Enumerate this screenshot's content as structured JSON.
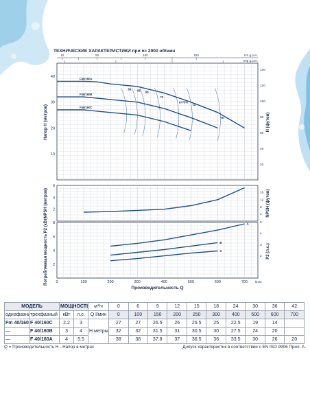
{
  "title": "ТЕХНИЧЕСКИЕ ХАРАКТЕРИСТИКИ при n≈ 2900 об/мин",
  "colors": {
    "curve": "#1f4f91",
    "grid": "#c5cad3",
    "frame": "#2b3550",
    "splash": "#bfe1f3"
  },
  "head_chart": {
    "top_axis_labels": [
      "10",
      "50",
      "100",
      "150",
      "US g.p.m.",
      "Imp g.p.m."
    ],
    "top_axis_unit": "US g.p.m.",
    "top_axis_unit2": "Imp g.p.m.",
    "top_ticks_us": [
      {
        "x": 20,
        "t": "10"
      },
      {
        "x": 80,
        "t": ""
      },
      {
        "x": 150,
        "t": "50"
      },
      {
        "x": 240,
        "t": ""
      },
      {
        "x": 330,
        "t": "100"
      },
      {
        "x": 430,
        "t": ""
      },
      {
        "x": 520,
        "t": "150"
      }
    ],
    "top_ticks_imp": [
      {
        "x": 30,
        "t": "10"
      },
      {
        "x": 220,
        "t": "50"
      },
      {
        "x": 430,
        "t": "100"
      },
      {
        "x": 620,
        "t": "150"
      }
    ],
    "ylabel_left": "Напор  H  (метров)",
    "ylabel_right": "H  (футов)",
    "ylim": [
      0,
      45
    ],
    "yticks_left": [
      "10",
      "20",
      "30",
      "40"
    ],
    "yticks_right": [
      "20",
      "40",
      "60",
      "80",
      "100",
      "120",
      "140"
    ],
    "series": [
      {
        "name": "F40/160A",
        "x": [
          0,
          100,
          150,
          200,
          250,
          300,
          400,
          500,
          600,
          700
        ],
        "y": [
          38,
          38,
          37.8,
          37,
          36.5,
          36,
          33.5,
          30,
          26,
          20
        ]
      },
      {
        "name": "F40/160B",
        "x": [
          0,
          100,
          150,
          200,
          250,
          300,
          400,
          500,
          600
        ],
        "y": [
          32,
          32,
          31.5,
          31,
          30.5,
          30,
          27.5,
          24,
          20
        ]
      },
      {
        "name": "F40/160C",
        "x": [
          0,
          100,
          150,
          200,
          250,
          300,
          400,
          500
        ],
        "y": [
          27,
          27,
          26.5,
          26,
          25.5,
          25,
          22.5,
          19
        ]
      }
    ],
    "efficiency_labels": [
      {
        "t": "60",
        "x": 265,
        "y": 34.5
      },
      {
        "t": "65",
        "x": 300,
        "y": 34
      },
      {
        "t": "68",
        "x": 330,
        "y": 33.5
      },
      {
        "t": "70",
        "x": 385,
        "y": 31.5
      },
      {
        "t": "η=70%",
        "x": 455,
        "y": 29.5
      },
      {
        "t": "74",
        "x": 505,
        "y": 28.5
      },
      {
        "t": "75",
        "x": 610,
        "y": 23.5
      }
    ]
  },
  "npsh_chart": {
    "ylabel_left": "NPSH  (метров)",
    "ylabel_right": "NPSH  (футов)",
    "ylim": [
      0,
      6
    ],
    "yticks_left": [
      "2",
      "4",
      "6"
    ],
    "yticks_right": [
      "4",
      "8",
      "12",
      "16"
    ],
    "series": [
      {
        "name": "NPSH",
        "x": [
          100,
          200,
          300,
          400,
          500,
          600,
          700
        ],
        "y": [
          1.5,
          1.6,
          1.8,
          2.0,
          2.6,
          3.6,
          5.6
        ]
      }
    ]
  },
  "power_chart": {
    "ylabel_left": "Потребляемая мощность  P2  (кВт)",
    "ylabel_right": "P2  (л.с.)",
    "ylim": [
      0,
      8
    ],
    "yticks_left": [
      "2",
      "4",
      "6",
      "8"
    ],
    "yticks_right": [
      "2",
      "3",
      "4",
      "5"
    ],
    "xticks": [
      "0",
      "100",
      "200",
      "300",
      "400",
      "500",
      "600",
      "700"
    ],
    "x_unit": "l/min",
    "xlabel": "Производительность  Q",
    "series": [
      {
        "name": "A",
        "x": [
          0,
          100,
          200,
          300,
          400,
          500,
          600,
          700
        ],
        "y": [
          3.8,
          4.2,
          4.6,
          5.0,
          5.5,
          6.2,
          6.9,
          7.8
        ]
      },
      {
        "name": "B",
        "x": [
          0,
          100,
          200,
          300,
          400,
          500,
          600
        ],
        "y": [
          2.6,
          2.9,
          3.3,
          3.7,
          4.1,
          4.6,
          5.1
        ]
      },
      {
        "name": "C",
        "x": [
          0,
          100,
          200,
          300,
          400,
          500,
          600
        ],
        "y": [
          1.8,
          2.1,
          2.5,
          2.8,
          3.2,
          3.6,
          3.9
        ]
      }
    ]
  },
  "chart_data": [
    {
      "type": "line",
      "title": "ТЕХНИЧЕСКИЕ ХАРАКТЕРИСТИКИ при n≈ 2900 об/мин",
      "xlabel": "Производительность  Q",
      "ylabel": "Напор  H  (метров)",
      "ylim": [
        0,
        45
      ],
      "series": [
        {
          "name": "F40/160A",
          "x": [
            0,
            100,
            150,
            200,
            250,
            300,
            400,
            500,
            600,
            700
          ],
          "y": [
            38,
            38,
            37.8,
            37,
            36.5,
            36,
            33.5,
            30,
            26,
            20
          ]
        },
        {
          "name": "F40/160B",
          "x": [
            0,
            100,
            150,
            200,
            250,
            300,
            400,
            500,
            600
          ],
          "y": [
            32,
            32,
            31.5,
            31,
            30.5,
            30,
            27.5,
            24,
            20
          ]
        },
        {
          "name": "F40/160C",
          "x": [
            0,
            100,
            150,
            200,
            250,
            300,
            400,
            500
          ],
          "y": [
            27,
            27,
            26.5,
            26,
            25.5,
            25,
            22.5,
            19
          ]
        }
      ]
    },
    {
      "type": "line",
      "ylabel": "NPSH  (метров)",
      "ylim": [
        0,
        6
      ],
      "series": [
        {
          "name": "NPSH",
          "x": [
            100,
            200,
            300,
            400,
            500,
            600,
            700
          ],
          "y": [
            1.5,
            1.6,
            1.8,
            2.0,
            2.6,
            3.6,
            5.6
          ]
        }
      ]
    },
    {
      "type": "line",
      "xlabel": "Производительность  Q",
      "ylabel": "Потребляемая мощность  P2  (кВт)",
      "ylim": [
        0,
        8
      ],
      "series": [
        {
          "name": "A",
          "x": [
            0,
            100,
            200,
            300,
            400,
            500,
            600,
            700
          ],
          "y": [
            3.8,
            4.2,
            4.6,
            5.0,
            5.5,
            6.2,
            6.9,
            7.8
          ]
        },
        {
          "name": "B",
          "x": [
            0,
            100,
            200,
            300,
            400,
            500,
            600
          ],
          "y": [
            2.6,
            2.9,
            3.3,
            3.7,
            4.1,
            4.6,
            5.1
          ]
        },
        {
          "name": "C",
          "x": [
            0,
            100,
            200,
            300,
            400,
            500,
            600
          ],
          "y": [
            1.8,
            2.1,
            2.5,
            2.8,
            3.2,
            3.6,
            3.9
          ]
        }
      ]
    }
  ],
  "table": {
    "model_header": "МОДЕЛЬ",
    "power_header": "МОЩНОСТЬ",
    "m3h_unit": "м³/ч",
    "q_label": "Q",
    "lmin_unit": "l/мин",
    "sub_headers": [
      "однофазный",
      "трехфазный",
      "кВт",
      "л.с."
    ],
    "q_m3h": [
      "0",
      "6",
      "9",
      "12",
      "15",
      "18",
      "24",
      "30",
      "36",
      "42"
    ],
    "q_lmin": [
      "0",
      "100",
      "150",
      "200",
      "250",
      "300",
      "400",
      "500",
      "600",
      "700"
    ],
    "h_label": "H метры",
    "rows": [
      {
        "single": "Fm  40/160C",
        "three": "F  40/160C",
        "kw": "2.2",
        "hp": "3",
        "h": [
          "27",
          "27",
          "26.5",
          "26",
          "25.5",
          "25",
          "22.5",
          "19",
          "14",
          ""
        ]
      },
      {
        "single": "—",
        "three": "F  40/160B",
        "kw": "3",
        "hp": "4",
        "h": [
          "32",
          "32",
          "31.5",
          "31",
          "30.5",
          "30",
          "27.5",
          "24",
          "20",
          ""
        ]
      },
      {
        "single": "—",
        "three": "F  40/160A",
        "kw": "4",
        "hp": "5.5",
        "h": [
          "38",
          "38",
          "37.8",
          "37",
          "36.5",
          "36",
          "33.5",
          "30",
          "26",
          "20"
        ]
      }
    ]
  },
  "footer": {
    "left": "Q = Производительность  H - Напор в метрах",
    "right": "Допуск характеристик в соответствии с EN ISO 9906 Прил. A."
  }
}
